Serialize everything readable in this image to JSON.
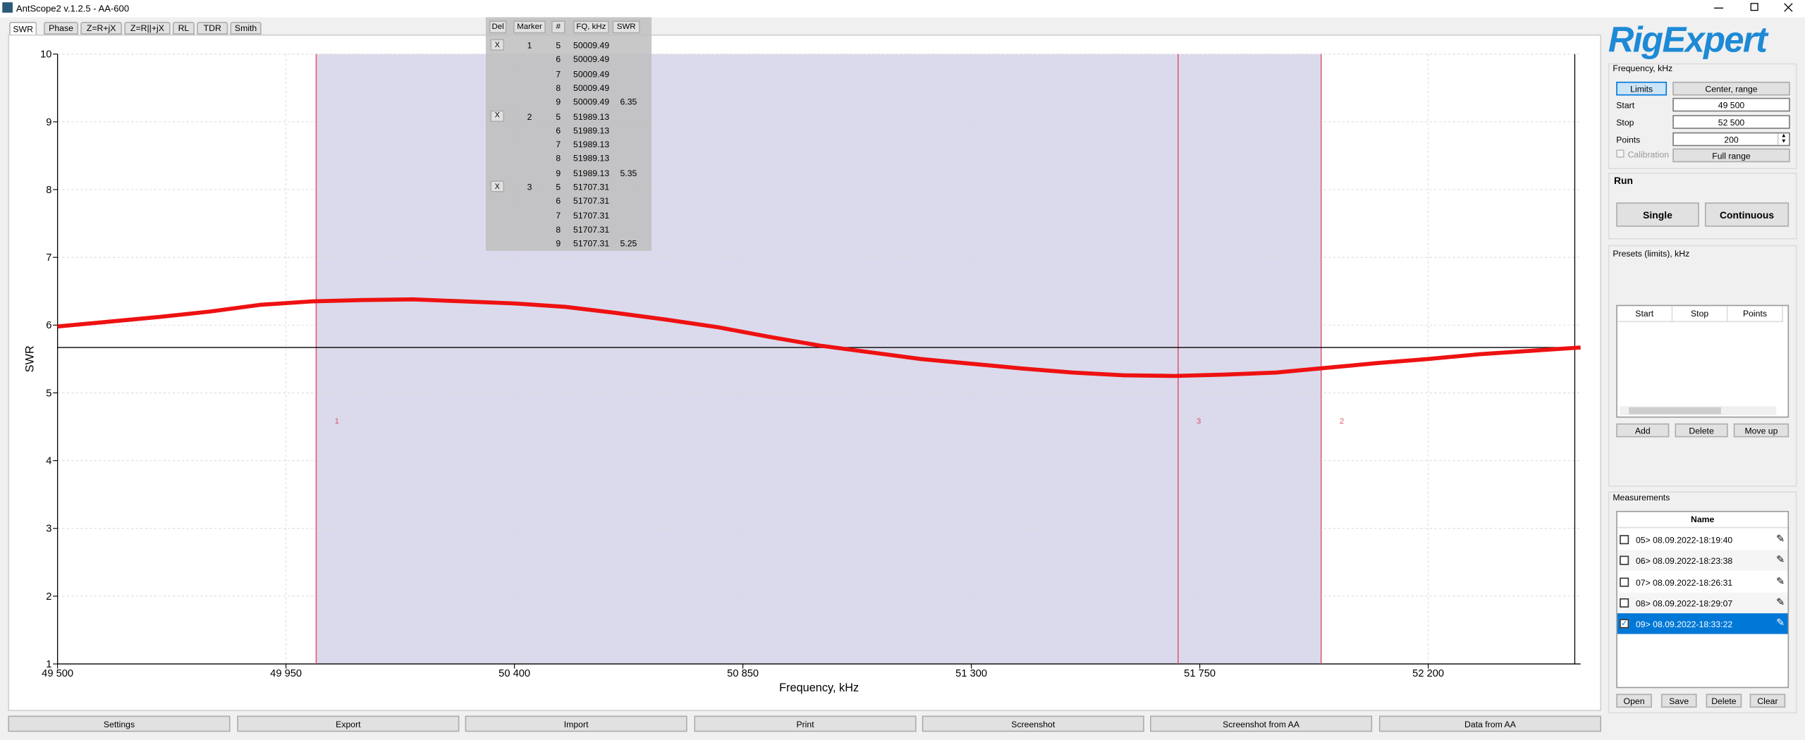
{
  "window": {
    "title": "AntScope2 v.1.2.5 - AA-600"
  },
  "tabs": [
    "SWR",
    "Phase",
    "Z=R+jX",
    "Z=R||+jX",
    "RL",
    "TDR",
    "Smith"
  ],
  "chart_data": {
    "type": "line",
    "xlabel": "Frequency, kHz",
    "ylabel": "SWR",
    "x": [
      49500,
      49600,
      49700,
      49800,
      49900,
      50000,
      50100,
      50200,
      50300,
      50400,
      50500,
      50600,
      50700,
      50800,
      50900,
      51000,
      51100,
      51200,
      51300,
      51400,
      51500,
      51600,
      51700,
      51800,
      51900,
      52000,
      52100,
      52200,
      52300,
      52400,
      52500
    ],
    "series": [
      {
        "color": "#ee1111",
        "values": [
          5.98,
          6.05,
          6.12,
          6.2,
          6.3,
          6.35,
          6.37,
          6.38,
          6.35,
          6.32,
          6.27,
          6.18,
          6.08,
          5.97,
          5.83,
          5.7,
          5.6,
          5.5,
          5.43,
          5.36,
          5.3,
          5.26,
          5.25,
          5.27,
          5.3,
          5.37,
          5.44,
          5.5,
          5.57,
          5.62,
          5.67
        ]
      }
    ],
    "xlim": [
      49500,
      52500
    ],
    "ylim": [
      1,
      10
    ],
    "xticks": [
      {
        "value": 49500,
        "label": "49 500"
      },
      {
        "value": 49950,
        "label": "49 950"
      },
      {
        "value": 50400,
        "label": "50 400"
      },
      {
        "value": 50850,
        "label": "50 850"
      },
      {
        "value": 51300,
        "label": "51 300"
      },
      {
        "value": 51750,
        "label": "51 750"
      },
      {
        "value": 52200,
        "label": "52 200"
      }
    ],
    "yticks": [
      1,
      2,
      3,
      4,
      5,
      6,
      7,
      8,
      9,
      10
    ],
    "grid": true,
    "reference_line": 5.67,
    "markers": [
      {
        "label": "1",
        "x": 50009.49,
        "color": "#e0506a"
      },
      {
        "label": "2",
        "x": 51989.13,
        "color": "#e0506a"
      },
      {
        "label": "3",
        "x": 51707.31,
        "color": "#e0506a"
      }
    ]
  },
  "marker_table": {
    "headers": [
      "Del",
      "Marker",
      "#",
      "FQ, kHz",
      "SWR"
    ],
    "groups": [
      {
        "del": "X",
        "marker": "1",
        "rows": [
          {
            "n": "5",
            "fq": "50009.49"
          },
          {
            "n": "6",
            "fq": "50009.49"
          },
          {
            "n": "7",
            "fq": "50009.49"
          },
          {
            "n": "8",
            "fq": "50009.49"
          },
          {
            "n": "9",
            "fq": "50009.49",
            "swr": "6.35"
          }
        ]
      },
      {
        "del": "X",
        "marker": "2",
        "rows": [
          {
            "n": "5",
            "fq": "51989.13"
          },
          {
            "n": "6",
            "fq": "51989.13"
          },
          {
            "n": "7",
            "fq": "51989.13"
          },
          {
            "n": "8",
            "fq": "51989.13"
          },
          {
            "n": "9",
            "fq": "51989.13",
            "swr": "5.35"
          }
        ]
      },
      {
        "del": "X",
        "marker": "3",
        "rows": [
          {
            "n": "5",
            "fq": "51707.31"
          },
          {
            "n": "6",
            "fq": "51707.31"
          },
          {
            "n": "7",
            "fq": "51707.31"
          },
          {
            "n": "8",
            "fq": "51707.31"
          },
          {
            "n": "9",
            "fq": "51707.31",
            "swr": "5.25"
          }
        ]
      }
    ]
  },
  "logo": "RigExpert",
  "frequency_panel": {
    "title": "Frequency, kHz",
    "limits": "Limits",
    "center_range": "Center, range",
    "start_label": "Start",
    "start": "49 500",
    "stop_label": "Stop",
    "stop": "52 500",
    "points_label": "Points",
    "points": "200",
    "calibration": "Calibration",
    "full_range": "Full range"
  },
  "run_panel": {
    "title": "Run",
    "single": "Single",
    "continuous": "Continuous"
  },
  "presets_panel": {
    "title": "Presets (limits), kHz",
    "headers": [
      "Start",
      "Stop",
      "Points"
    ],
    "buttons": [
      "Add",
      "Delete",
      "Move up"
    ]
  },
  "measurements_panel": {
    "title": "Measurements",
    "header": "Name",
    "items": [
      {
        "label": "05> 08.09.2022-18:19:40",
        "checked": false
      },
      {
        "label": "06> 08.09.2022-18:23:38",
        "checked": false
      },
      {
        "label": "07> 08.09.2022-18:26:31",
        "checked": false
      },
      {
        "label": "08> 08.09.2022-18:29:07",
        "checked": false
      },
      {
        "label": "09> 08.09.2022-18:33:22",
        "checked": true
      }
    ],
    "selected": 4,
    "buttons": [
      "Open",
      "Save",
      "Delete",
      "Clear"
    ]
  },
  "bottom_buttons": [
    "Settings",
    "Export",
    "Import",
    "Print",
    "Screenshot",
    "Screenshot from AA",
    "Data from AA"
  ]
}
